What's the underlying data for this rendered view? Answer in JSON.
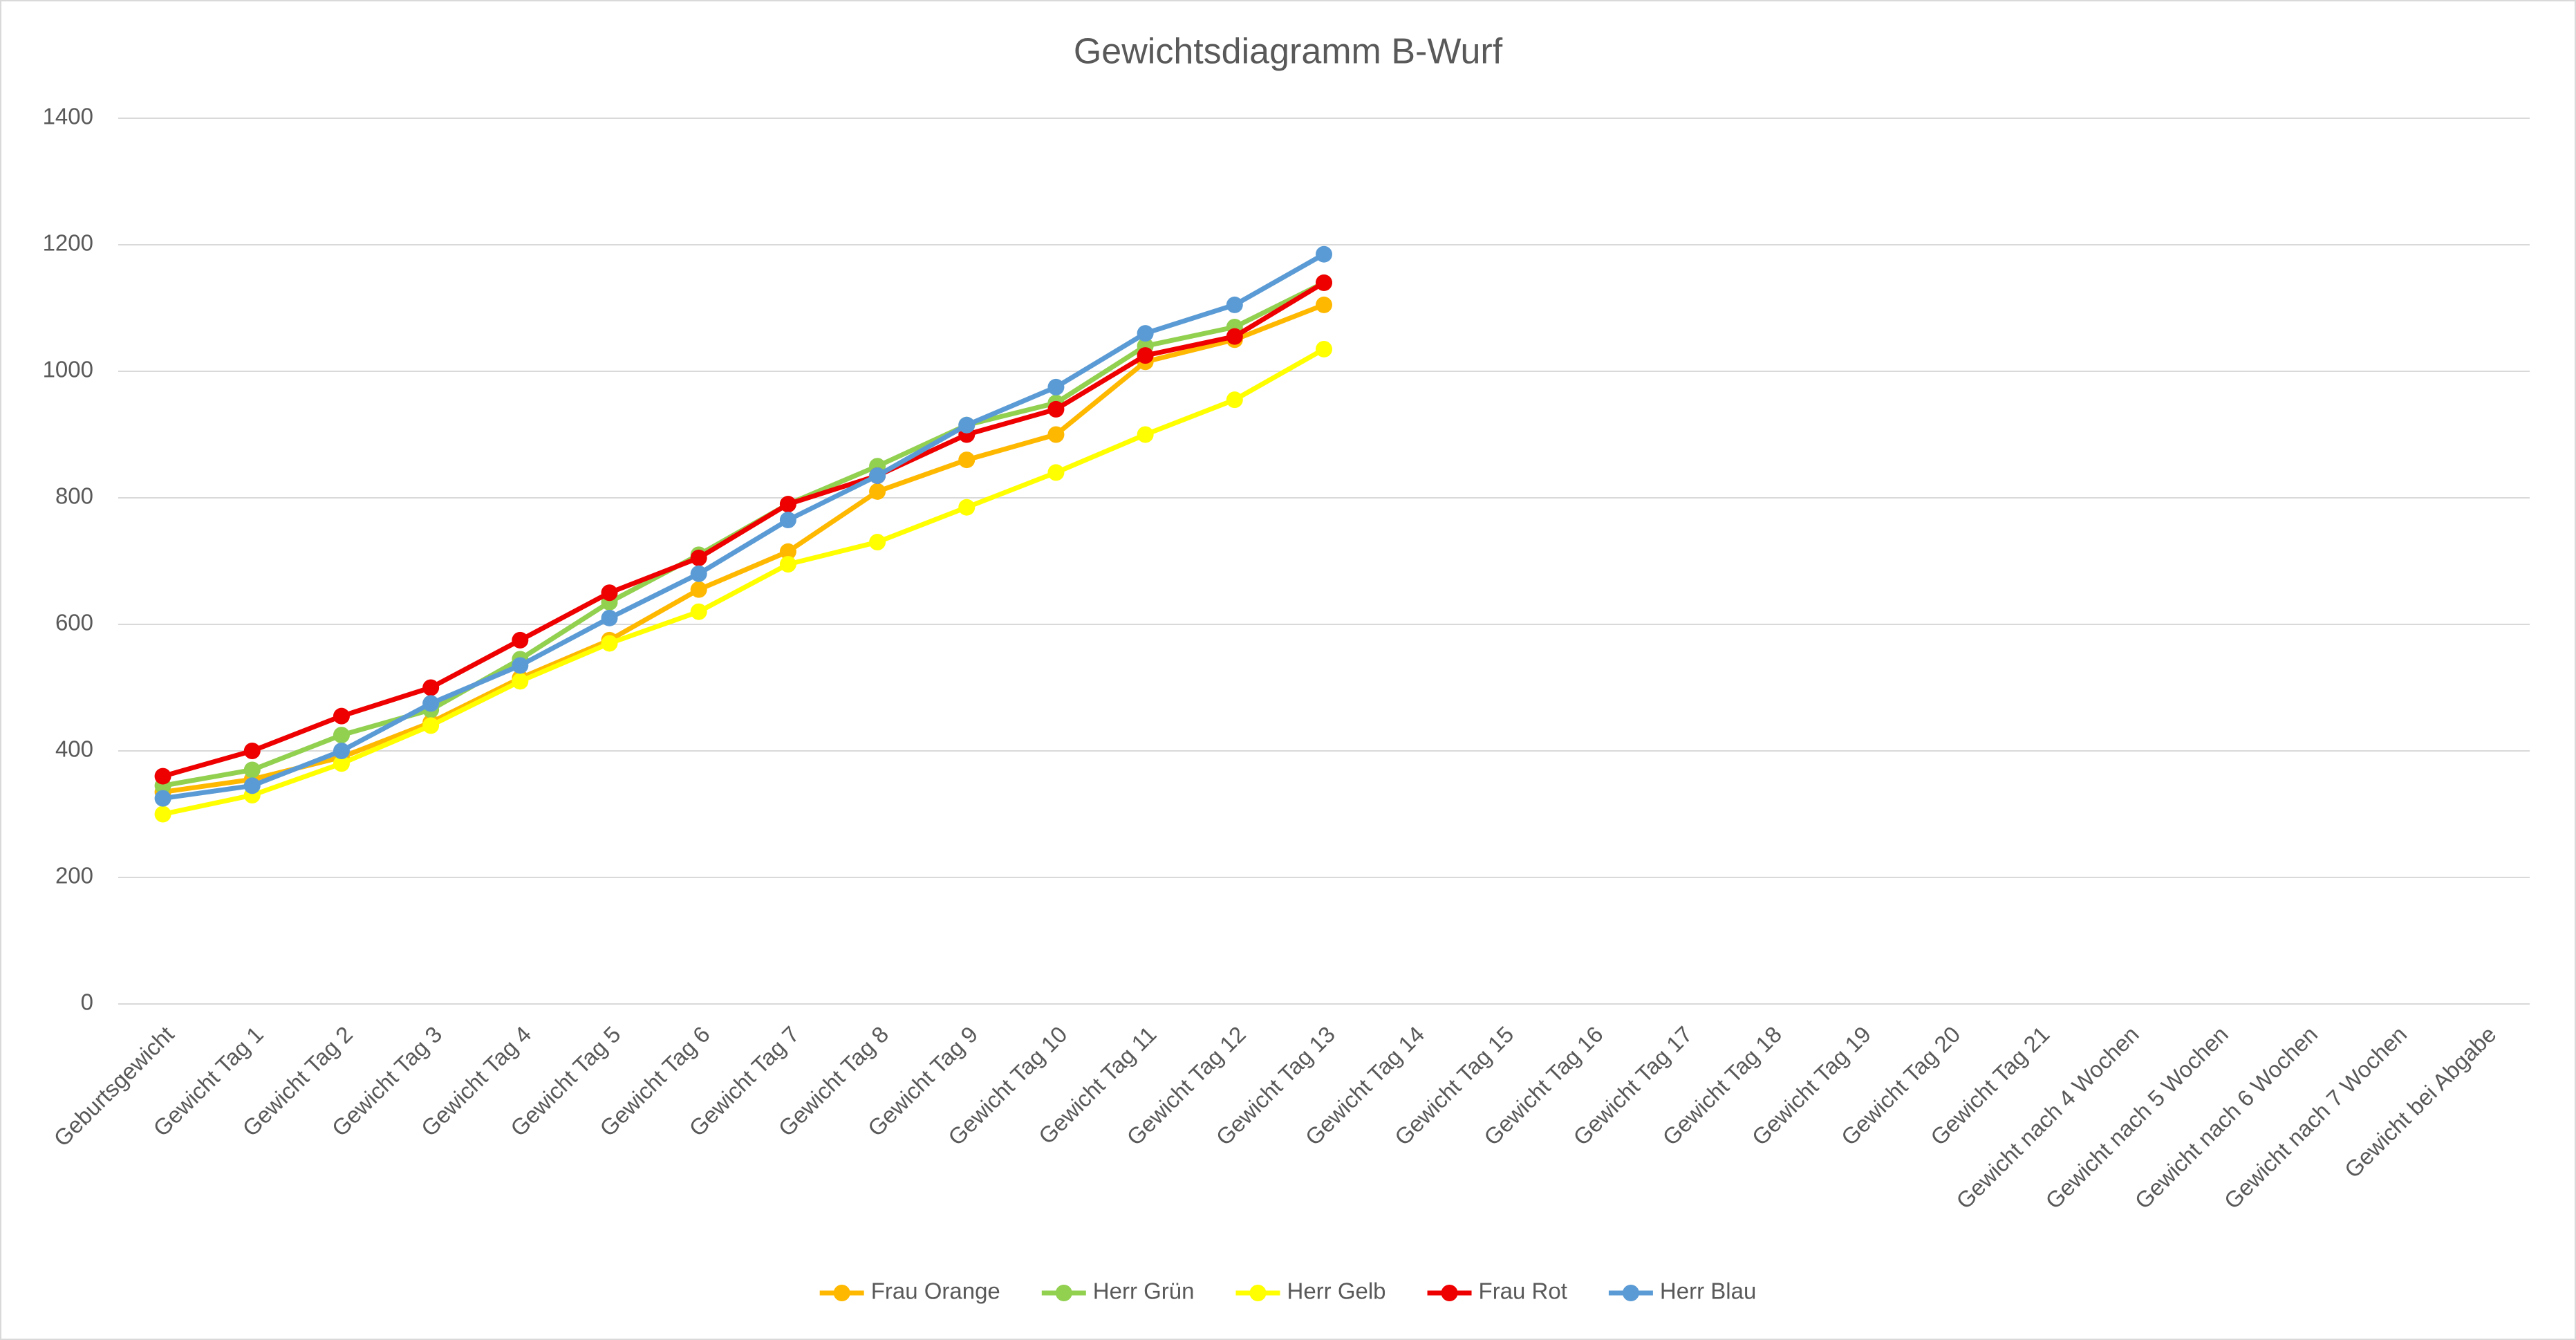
{
  "chart_data": {
    "type": "line",
    "title": "Gewichtsdiagramm B-Wurf",
    "categories": [
      "Geburtsgewicht",
      "Gewicht Tag 1",
      "Gewicht Tag 2",
      "Gewicht Tag 3",
      "Gewicht Tag 4",
      "Gewicht Tag 5",
      "Gewicht Tag 6",
      "Gewicht Tag 7",
      "Gewicht Tag 8",
      "Gewicht Tag 9",
      "Gewicht Tag 10",
      "Gewicht Tag 11",
      "Gewicht Tag 12",
      "Gewicht Tag 13",
      "Gewicht Tag 14",
      "Gewicht Tag 15",
      "Gewicht Tag 16",
      "Gewicht Tag 17",
      "Gewicht Tag 18",
      "Gewicht Tag 19",
      "Gewicht Tag 20",
      "Gewicht Tag 21",
      "Gewicht nach 4 Wochen",
      "Gewicht nach 5 Wochen",
      "Gewicht nach 6 Wochen",
      "Gewicht nach 7 Wochen",
      "Gewicht bei Abgabe"
    ],
    "series": [
      {
        "name": "Frau Orange",
        "color": "#ffb800",
        "values": [
          335,
          355,
          390,
          445,
          515,
          575,
          655,
          715,
          810,
          860,
          900,
          1015,
          1050,
          1105,
          null,
          null,
          null,
          null,
          null,
          null,
          null,
          null,
          null,
          null,
          null,
          null,
          null
        ]
      },
      {
        "name": "Herr Grün",
        "color": "#92d050",
        "values": [
          345,
          370,
          425,
          465,
          545,
          635,
          710,
          790,
          850,
          915,
          950,
          1040,
          1070,
          1140,
          null,
          null,
          null,
          null,
          null,
          null,
          null,
          null,
          null,
          null,
          null,
          null,
          null
        ]
      },
      {
        "name": "Herr Gelb",
        "color": "#ffff00",
        "values": [
          300,
          330,
          380,
          440,
          510,
          570,
          620,
          695,
          730,
          785,
          840,
          900,
          955,
          1035,
          null,
          null,
          null,
          null,
          null,
          null,
          null,
          null,
          null,
          null,
          null,
          null,
          null
        ]
      },
      {
        "name": "Frau Rot",
        "color": "#ee0000",
        "values": [
          360,
          400,
          455,
          500,
          575,
          650,
          705,
          790,
          835,
          900,
          940,
          1025,
          1055,
          1140,
          null,
          null,
          null,
          null,
          null,
          null,
          null,
          null,
          null,
          null,
          null,
          null,
          null
        ]
      },
      {
        "name": "Herr Blau",
        "color": "#5b9bd5",
        "values": [
          325,
          345,
          400,
          475,
          535,
          610,
          680,
          765,
          835,
          915,
          975,
          1060,
          1105,
          1185,
          null,
          null,
          null,
          null,
          null,
          null,
          null,
          null,
          null,
          null,
          null,
          null,
          null
        ]
      }
    ],
    "ylim": [
      0,
      1400
    ],
    "yticks": [
      0,
      200,
      400,
      600,
      800,
      1000,
      1200,
      1400
    ],
    "grid": true,
    "legend": "bottom"
  }
}
